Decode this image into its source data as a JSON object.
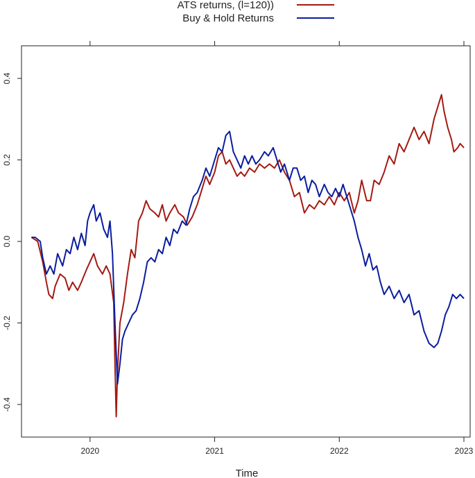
{
  "chart_data": {
    "type": "line",
    "title": "",
    "xlabel": "Time",
    "ylabel": "",
    "xlim": [
      2019.45,
      2023.05
    ],
    "ylim": [
      -0.48,
      0.48
    ],
    "x_ticks": [
      {
        "value": 2020,
        "label": "2020"
      },
      {
        "value": 2021,
        "label": "2021"
      },
      {
        "value": 2022,
        "label": "2022"
      },
      {
        "value": 2023,
        "label": "2023"
      }
    ],
    "y_ticks": [
      {
        "value": -0.4,
        "label": "-0.4"
      },
      {
        "value": -0.2,
        "label": "-0.2"
      },
      {
        "value": 0.0,
        "label": "0.0"
      },
      {
        "value": 0.2,
        "label": "0.2"
      },
      {
        "value": 0.4,
        "label": "0.4"
      }
    ],
    "grid": false,
    "legend_position": "top",
    "series": [
      {
        "name": "ATS returns, (l=120))",
        "color": "#a31a12",
        "points": [
          [
            2019.53,
            0.01
          ],
          [
            2019.58,
            0.0
          ],
          [
            2019.62,
            -0.05
          ],
          [
            2019.65,
            -0.1
          ],
          [
            2019.67,
            -0.13
          ],
          [
            2019.7,
            -0.14
          ],
          [
            2019.72,
            -0.11
          ],
          [
            2019.76,
            -0.08
          ],
          [
            2019.8,
            -0.09
          ],
          [
            2019.83,
            -0.12
          ],
          [
            2019.86,
            -0.1
          ],
          [
            2019.9,
            -0.12
          ],
          [
            2019.93,
            -0.1
          ],
          [
            2019.97,
            -0.07
          ],
          [
            2020.0,
            -0.05
          ],
          [
            2020.03,
            -0.03
          ],
          [
            2020.06,
            -0.06
          ],
          [
            2020.1,
            -0.08
          ],
          [
            2020.13,
            -0.06
          ],
          [
            2020.16,
            -0.08
          ],
          [
            2020.19,
            -0.15
          ],
          [
            2020.2,
            -0.3
          ],
          [
            2020.21,
            -0.43
          ],
          [
            2020.22,
            -0.32
          ],
          [
            2020.24,
            -0.2
          ],
          [
            2020.27,
            -0.15
          ],
          [
            2020.3,
            -0.08
          ],
          [
            2020.33,
            -0.02
          ],
          [
            2020.36,
            -0.04
          ],
          [
            2020.39,
            0.05
          ],
          [
            2020.42,
            0.07
          ],
          [
            2020.45,
            0.1
          ],
          [
            2020.48,
            0.08
          ],
          [
            2020.52,
            0.07
          ],
          [
            2020.55,
            0.06
          ],
          [
            2020.58,
            0.09
          ],
          [
            2020.61,
            0.05
          ],
          [
            2020.64,
            0.07
          ],
          [
            2020.68,
            0.09
          ],
          [
            2020.71,
            0.07
          ],
          [
            2020.75,
            0.06
          ],
          [
            2020.78,
            0.04
          ],
          [
            2020.82,
            0.06
          ],
          [
            2020.86,
            0.09
          ],
          [
            2020.9,
            0.13
          ],
          [
            2020.93,
            0.16
          ],
          [
            2020.96,
            0.14
          ],
          [
            2021.0,
            0.17
          ],
          [
            2021.03,
            0.21
          ],
          [
            2021.06,
            0.22
          ],
          [
            2021.09,
            0.19
          ],
          [
            2021.12,
            0.2
          ],
          [
            2021.15,
            0.18
          ],
          [
            2021.18,
            0.16
          ],
          [
            2021.21,
            0.17
          ],
          [
            2021.24,
            0.16
          ],
          [
            2021.28,
            0.18
          ],
          [
            2021.32,
            0.17
          ],
          [
            2021.36,
            0.19
          ],
          [
            2021.4,
            0.18
          ],
          [
            2021.44,
            0.19
          ],
          [
            2021.48,
            0.18
          ],
          [
            2021.52,
            0.2
          ],
          [
            2021.56,
            0.17
          ],
          [
            2021.6,
            0.15
          ],
          [
            2021.64,
            0.11
          ],
          [
            2021.68,
            0.12
          ],
          [
            2021.72,
            0.07
          ],
          [
            2021.76,
            0.09
          ],
          [
            2021.8,
            0.08
          ],
          [
            2021.84,
            0.1
          ],
          [
            2021.88,
            0.09
          ],
          [
            2021.92,
            0.11
          ],
          [
            2021.96,
            0.09
          ],
          [
            2022.0,
            0.12
          ],
          [
            2022.04,
            0.1
          ],
          [
            2022.08,
            0.12
          ],
          [
            2022.12,
            0.07
          ],
          [
            2022.15,
            0.1
          ],
          [
            2022.18,
            0.15
          ],
          [
            2022.22,
            0.1
          ],
          [
            2022.25,
            0.1
          ],
          [
            2022.28,
            0.15
          ],
          [
            2022.32,
            0.14
          ],
          [
            2022.36,
            0.17
          ],
          [
            2022.4,
            0.21
          ],
          [
            2022.44,
            0.19
          ],
          [
            2022.48,
            0.24
          ],
          [
            2022.52,
            0.22
          ],
          [
            2022.56,
            0.25
          ],
          [
            2022.6,
            0.28
          ],
          [
            2022.64,
            0.25
          ],
          [
            2022.68,
            0.27
          ],
          [
            2022.72,
            0.24
          ],
          [
            2022.76,
            0.3
          ],
          [
            2022.8,
            0.34
          ],
          [
            2022.82,
            0.36
          ],
          [
            2022.84,
            0.32
          ],
          [
            2022.87,
            0.28
          ],
          [
            2022.9,
            0.25
          ],
          [
            2022.92,
            0.22
          ],
          [
            2022.95,
            0.23
          ],
          [
            2022.97,
            0.24
          ],
          [
            2023.0,
            0.23
          ]
        ]
      },
      {
        "name": "Buy & Hold Returns",
        "color": "#0a1c9e",
        "points": [
          [
            2019.53,
            0.01
          ],
          [
            2019.56,
            0.01
          ],
          [
            2019.6,
            0.0
          ],
          [
            2019.62,
            -0.04
          ],
          [
            2019.65,
            -0.08
          ],
          [
            2019.68,
            -0.06
          ],
          [
            2019.71,
            -0.08
          ],
          [
            2019.74,
            -0.03
          ],
          [
            2019.78,
            -0.06
          ],
          [
            2019.81,
            -0.02
          ],
          [
            2019.84,
            -0.03
          ],
          [
            2019.87,
            0.01
          ],
          [
            2019.9,
            -0.02
          ],
          [
            2019.93,
            0.02
          ],
          [
            2019.96,
            -0.01
          ],
          [
            2019.98,
            0.05
          ],
          [
            2020.0,
            0.07
          ],
          [
            2020.03,
            0.09
          ],
          [
            2020.05,
            0.05
          ],
          [
            2020.08,
            0.07
          ],
          [
            2020.11,
            0.03
          ],
          [
            2020.14,
            0.01
          ],
          [
            2020.16,
            0.05
          ],
          [
            2020.18,
            -0.03
          ],
          [
            2020.2,
            -0.2
          ],
          [
            2020.22,
            -0.35
          ],
          [
            2020.24,
            -0.3
          ],
          [
            2020.26,
            -0.24
          ],
          [
            2020.28,
            -0.22
          ],
          [
            2020.31,
            -0.2
          ],
          [
            2020.34,
            -0.18
          ],
          [
            2020.37,
            -0.17
          ],
          [
            2020.4,
            -0.14
          ],
          [
            2020.43,
            -0.1
          ],
          [
            2020.46,
            -0.05
          ],
          [
            2020.49,
            -0.04
          ],
          [
            2020.52,
            -0.05
          ],
          [
            2020.55,
            -0.02
          ],
          [
            2020.58,
            -0.03
          ],
          [
            2020.61,
            0.01
          ],
          [
            2020.64,
            -0.01
          ],
          [
            2020.67,
            0.03
          ],
          [
            2020.7,
            0.02
          ],
          [
            2020.74,
            0.05
          ],
          [
            2020.77,
            0.04
          ],
          [
            2020.8,
            0.08
          ],
          [
            2020.83,
            0.11
          ],
          [
            2020.86,
            0.12
          ],
          [
            2020.9,
            0.15
          ],
          [
            2020.93,
            0.18
          ],
          [
            2020.96,
            0.16
          ],
          [
            2021.0,
            0.2
          ],
          [
            2021.03,
            0.23
          ],
          [
            2021.06,
            0.22
          ],
          [
            2021.09,
            0.26
          ],
          [
            2021.12,
            0.27
          ],
          [
            2021.15,
            0.22
          ],
          [
            2021.18,
            0.2
          ],
          [
            2021.21,
            0.18
          ],
          [
            2021.24,
            0.21
          ],
          [
            2021.27,
            0.19
          ],
          [
            2021.3,
            0.21
          ],
          [
            2021.33,
            0.19
          ],
          [
            2021.36,
            0.2
          ],
          [
            2021.4,
            0.22
          ],
          [
            2021.43,
            0.21
          ],
          [
            2021.47,
            0.23
          ],
          [
            2021.5,
            0.2
          ],
          [
            2021.53,
            0.17
          ],
          [
            2021.56,
            0.19
          ],
          [
            2021.6,
            0.15
          ],
          [
            2021.63,
            0.18
          ],
          [
            2021.66,
            0.18
          ],
          [
            2021.69,
            0.15
          ],
          [
            2021.72,
            0.16
          ],
          [
            2021.75,
            0.12
          ],
          [
            2021.78,
            0.15
          ],
          [
            2021.81,
            0.14
          ],
          [
            2021.84,
            0.11
          ],
          [
            2021.88,
            0.14
          ],
          [
            2021.91,
            0.12
          ],
          [
            2021.94,
            0.11
          ],
          [
            2021.97,
            0.13
          ],
          [
            2022.0,
            0.11
          ],
          [
            2022.03,
            0.14
          ],
          [
            2022.06,
            0.11
          ],
          [
            2022.09,
            0.08
          ],
          [
            2022.12,
            0.05
          ],
          [
            2022.15,
            0.01
          ],
          [
            2022.18,
            -0.02
          ],
          [
            2022.21,
            -0.06
          ],
          [
            2022.24,
            -0.03
          ],
          [
            2022.27,
            -0.07
          ],
          [
            2022.3,
            -0.06
          ],
          [
            2022.33,
            -0.1
          ],
          [
            2022.36,
            -0.13
          ],
          [
            2022.4,
            -0.11
          ],
          [
            2022.44,
            -0.14
          ],
          [
            2022.48,
            -0.12
          ],
          [
            2022.52,
            -0.15
          ],
          [
            2022.56,
            -0.13
          ],
          [
            2022.6,
            -0.18
          ],
          [
            2022.64,
            -0.17
          ],
          [
            2022.68,
            -0.22
          ],
          [
            2022.72,
            -0.25
          ],
          [
            2022.76,
            -0.26
          ],
          [
            2022.79,
            -0.25
          ],
          [
            2022.82,
            -0.22
          ],
          [
            2022.85,
            -0.18
          ],
          [
            2022.88,
            -0.16
          ],
          [
            2022.91,
            -0.13
          ],
          [
            2022.94,
            -0.14
          ],
          [
            2022.97,
            -0.13
          ],
          [
            2023.0,
            -0.14
          ]
        ]
      }
    ]
  }
}
